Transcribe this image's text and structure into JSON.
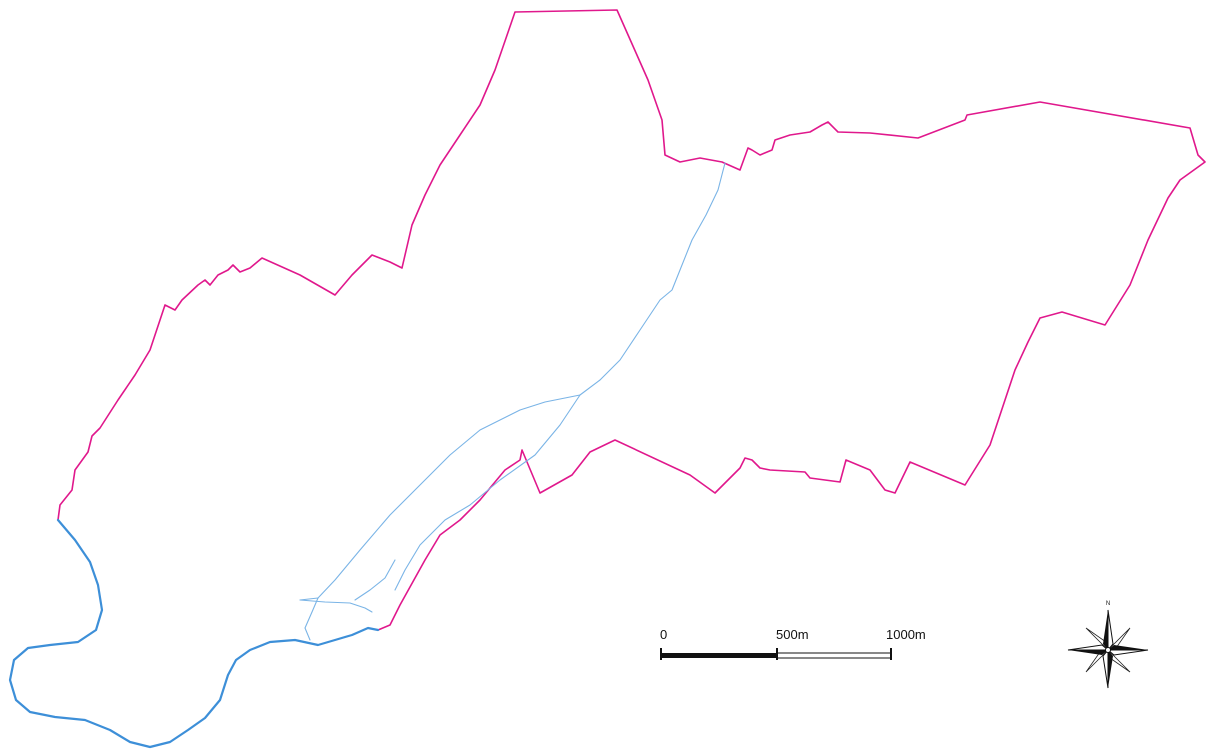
{
  "map": {
    "boundary_color": "#e0188c",
    "water_color": "#3d8fd8",
    "minor_water_color": "#7ab4e6"
  },
  "scale_bar": {
    "label_start": "0",
    "label_mid": "500m",
    "label_end": "1000m"
  },
  "compass": {
    "north_label": "N",
    "icon": "compass-rose-icon"
  }
}
